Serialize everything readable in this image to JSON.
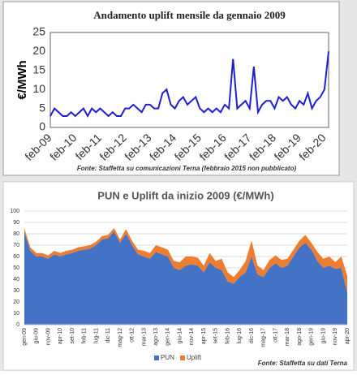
{
  "chart_data": [
    {
      "type": "line",
      "title": "Andamento uplift mensile da gennaio 2009",
      "y_label": "€/MWh",
      "source": "Fonte: Staffetta su comunicazioni Terna (febbraio 2015 non pubblicato)",
      "categories": [
        "feb-09",
        null,
        null,
        null,
        null,
        null,
        "feb-10",
        null,
        null,
        null,
        null,
        null,
        "feb-11",
        null,
        null,
        null,
        null,
        null,
        "feb-12",
        null,
        null,
        null,
        null,
        null,
        "feb-13",
        null,
        null,
        null,
        null,
        null,
        "feb-14",
        null,
        null,
        null,
        null,
        null,
        "feb-15",
        null,
        null,
        null,
        null,
        null,
        "feb-16",
        null,
        null,
        null,
        null,
        null,
        "feb-17",
        null,
        null,
        null,
        null,
        null,
        "feb-18",
        null,
        null,
        null,
        null,
        null,
        "feb-19",
        null,
        null,
        null,
        null,
        null,
        "feb-20",
        null
      ],
      "series": [
        {
          "name": "Uplift",
          "color": "#1f1fd0",
          "values": [
            3,
            5,
            4,
            3,
            3,
            4,
            3,
            4,
            5,
            3,
            5,
            4,
            5,
            4,
            3,
            4,
            3,
            3,
            5,
            5,
            6,
            5,
            4,
            6,
            6,
            5,
            5,
            9,
            10,
            6,
            5,
            7,
            8,
            6,
            7,
            8,
            5,
            4,
            5,
            4,
            5,
            4,
            6,
            5,
            18,
            5,
            6,
            7,
            5,
            16,
            4,
            6,
            7,
            7,
            5,
            8,
            7,
            8,
            6,
            5,
            7,
            6,
            9,
            5,
            7,
            8,
            10,
            20
          ]
        }
      ],
      "ylim": [
        0,
        25
      ],
      "yticks": [
        0,
        5,
        10,
        15,
        20,
        25
      ],
      "grid": false
    },
    {
      "type": "stacked_area",
      "title": "PUN e Uplift da inizio 2009 (€/MWh)",
      "source": "Fonte: Staffetta su dati Terna",
      "categories": [
        "gen-09",
        null,
        "giu-09",
        null,
        "nov-09",
        null,
        "apr-10",
        null,
        "set-10",
        null,
        "feb-11",
        null,
        "lug-11",
        null,
        "dic-11",
        null,
        "mag-12",
        null,
        "ott-12",
        null,
        "mar-13",
        null,
        "ago-13",
        null,
        "gen-14",
        null,
        "giu-14",
        null,
        "nov-14",
        null,
        "apr-15",
        null,
        "set-15",
        null,
        "feb-16",
        null,
        "lug-16",
        null,
        "dic-16",
        null,
        "mag-17",
        null,
        "ott-17",
        null,
        "mar-18",
        null,
        "ago-18",
        null,
        "gen-19",
        null,
        "giu-19",
        null,
        "nov-19",
        null,
        "apr-20"
      ],
      "series": [
        {
          "name": "PUN",
          "color": "#4472c4",
          "values": [
            82,
            65,
            60,
            60,
            58,
            62,
            60,
            62,
            63,
            65,
            66,
            67,
            70,
            75,
            76,
            82,
            72,
            80,
            70,
            62,
            60,
            58,
            64,
            62,
            60,
            50,
            48,
            52,
            53,
            52,
            46,
            55,
            50,
            48,
            38,
            36,
            42,
            46,
            60,
            44,
            42,
            50,
            54,
            50,
            52,
            60,
            68,
            72,
            66,
            56,
            50,
            52,
            49,
            50,
            28
          ]
        },
        {
          "name": "Uplift",
          "color": "#ed7d31",
          "values": [
            3,
            3,
            3,
            3,
            3,
            3,
            3,
            3,
            3,
            3,
            3,
            3,
            3,
            3,
            3,
            3,
            3,
            4,
            4,
            4,
            5,
            5,
            6,
            6,
            6,
            6,
            7,
            8,
            7,
            7,
            6,
            8,
            6,
            10,
            8,
            6,
            6,
            10,
            14,
            8,
            6,
            7,
            7,
            7,
            6,
            6,
            6,
            7,
            6,
            8,
            8,
            8,
            6,
            10,
            15
          ]
        }
      ],
      "ylim": [
        0,
        100
      ],
      "yticks": [
        0,
        10,
        20,
        30,
        40,
        50,
        60,
        70,
        80,
        90,
        100
      ],
      "grid": true,
      "legend": "bottom"
    }
  ]
}
